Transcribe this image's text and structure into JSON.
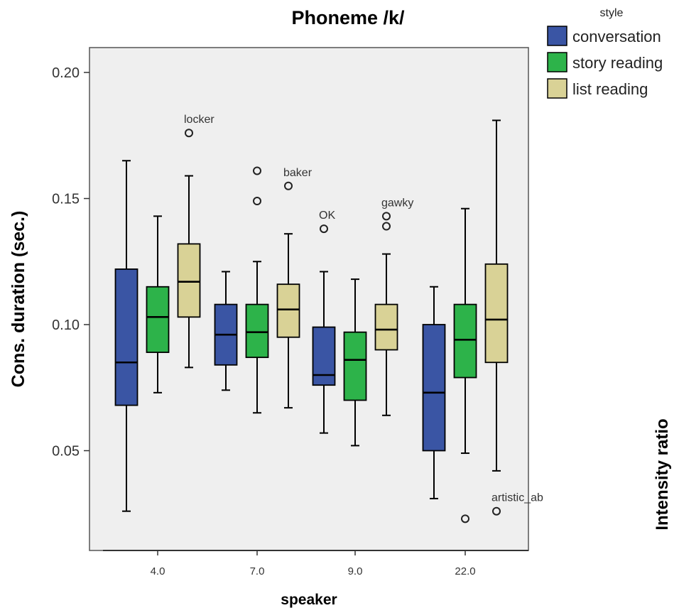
{
  "chart_data": {
    "type": "boxplot",
    "title": "Phoneme /k/",
    "xlabel": "speaker",
    "ylabel": "Cons. duration (sec.)",
    "right_label": "Intensity ratio",
    "categories": [
      "4.0",
      "7.0",
      "9.0",
      "22.0"
    ],
    "yticks": [
      "0.05",
      "0.10",
      "0.15",
      "0.20"
    ],
    "ylim": [
      0.0,
      0.22
    ],
    "grid": false,
    "legend": {
      "title": "style",
      "position": "top-right"
    },
    "series": [
      {
        "name": "conversation",
        "color": "#3a55a4",
        "boxes": [
          {
            "whisker_low": 0.026,
            "q1": 0.068,
            "median": 0.085,
            "q3": 0.122,
            "whisker_high": 0.165
          },
          {
            "whisker_low": 0.074,
            "q1": 0.084,
            "median": 0.096,
            "q3": 0.108,
            "whisker_high": 0.121
          },
          {
            "whisker_low": 0.057,
            "q1": 0.076,
            "median": 0.08,
            "q3": 0.099,
            "whisker_high": 0.121
          },
          {
            "whisker_low": 0.031,
            "q1": 0.05,
            "median": 0.073,
            "q3": 0.1,
            "whisker_high": 0.115
          }
        ],
        "outliers": [
          {
            "category": 2,
            "value": 0.138,
            "label": "OK"
          }
        ]
      },
      {
        "name": "story reading",
        "color": "#2db34a",
        "boxes": [
          {
            "whisker_low": 0.073,
            "q1": 0.089,
            "median": 0.103,
            "q3": 0.115,
            "whisker_high": 0.143
          },
          {
            "whisker_low": 0.065,
            "q1": 0.087,
            "median": 0.097,
            "q3": 0.108,
            "whisker_high": 0.125
          },
          {
            "whisker_low": 0.052,
            "q1": 0.07,
            "median": 0.086,
            "q3": 0.097,
            "whisker_high": 0.118
          },
          {
            "whisker_low": 0.049,
            "q1": 0.079,
            "median": 0.094,
            "q3": 0.108,
            "whisker_high": 0.146
          }
        ],
        "outliers": [
          {
            "category": 1,
            "value": 0.161,
            "label": ""
          },
          {
            "category": 1,
            "value": 0.149,
            "label": ""
          },
          {
            "category": 3,
            "value": 0.023,
            "label": ""
          }
        ]
      },
      {
        "name": "list reading",
        "color": "#d9d296",
        "boxes": [
          {
            "whisker_low": 0.083,
            "q1": 0.103,
            "median": 0.117,
            "q3": 0.132,
            "whisker_high": 0.159
          },
          {
            "whisker_low": 0.067,
            "q1": 0.095,
            "median": 0.106,
            "q3": 0.116,
            "whisker_high": 0.136
          },
          {
            "whisker_low": 0.064,
            "q1": 0.09,
            "median": 0.098,
            "q3": 0.108,
            "whisker_high": 0.128
          },
          {
            "whisker_low": 0.042,
            "q1": 0.085,
            "median": 0.102,
            "q3": 0.124,
            "whisker_high": 0.181
          }
        ],
        "outliers": [
          {
            "category": 0,
            "value": 0.176,
            "label": "locker"
          },
          {
            "category": 1,
            "value": 0.155,
            "label": "baker"
          },
          {
            "category": 2,
            "value": 0.143,
            "label": "gawky"
          },
          {
            "category": 2,
            "value": 0.139,
            "label": ""
          },
          {
            "category": 3,
            "value": 0.026,
            "label": "artistic_ab"
          }
        ]
      }
    ]
  }
}
